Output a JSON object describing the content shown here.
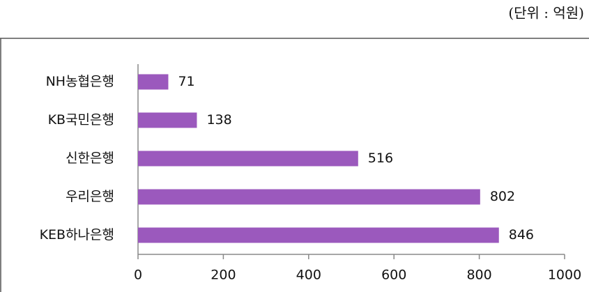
{
  "chart_data": {
    "type": "bar",
    "orientation": "horizontal",
    "subtitle": "(단위 : 억원)",
    "categories": [
      "NH농협은행",
      "KB국민은행",
      "신한은행",
      "우리은행",
      "KEB하나은행"
    ],
    "values": [
      71,
      138,
      516,
      802,
      846
    ],
    "color": "#9b59bd",
    "xlim": [
      0,
      1000
    ],
    "xticks": [
      0,
      200,
      400,
      600,
      800,
      1000
    ],
    "grid": false
  }
}
